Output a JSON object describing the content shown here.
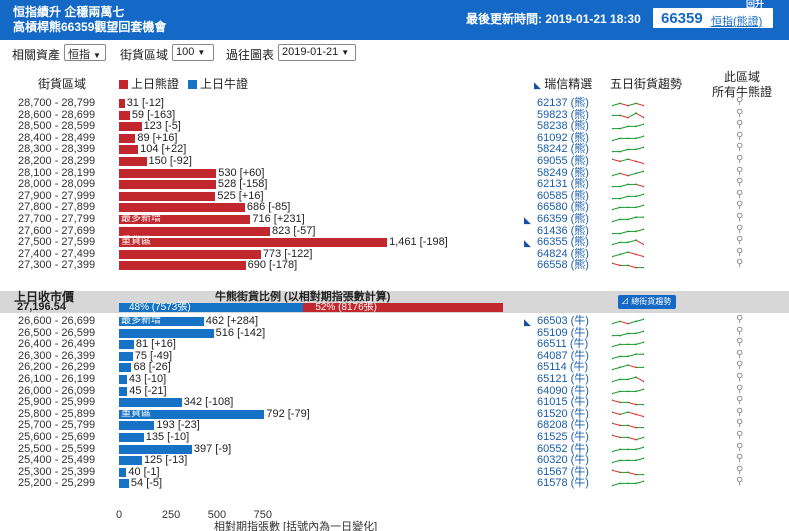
{
  "header": {
    "title_line1": "恒指績升 企穩兩萬七",
    "title_line2": "高槓桿熊66359觀望回套機會",
    "updated_label": "最後更新時間: 2019-01-21 18:30",
    "code": "66359",
    "code_name": "恒指(熊證)",
    "corner_text": "回升"
  },
  "filters": {
    "asset_label": "相關資產",
    "asset_value": "恒指",
    "zone_label": "街貨區域",
    "zone_value": "100",
    "chart_label": "過往圖表",
    "chart_value": "2019-01-21"
  },
  "columns": {
    "zone": "街貨區域",
    "legend_bear": "上日熊證",
    "legend_bull": "上日牛證",
    "picks": "瑞信精選",
    "trend": "五日街貨趨勢",
    "all_line1": "此區域",
    "all_line2": "所有牛熊證"
  },
  "colors": {
    "bear": "#c1272d",
    "bull": "#1572c4",
    "header": "#1469c7",
    "up": "#1a9a2a",
    "down": "#e03030"
  },
  "icons": {
    "search": "magnifier-icon",
    "highlight": "arrow-icon"
  },
  "bear_rows": [
    {
      "range": "28,700 - 28,799",
      "value": 31,
      "label": "31 [-12]",
      "code": "62137 (熊)",
      "trend": [
        2,
        3,
        2,
        3,
        2
      ],
      "tag": "",
      "hl": false
    },
    {
      "range": "28,600 - 28,699",
      "value": 59,
      "label": "59 [-163]",
      "code": "59823 (熊)",
      "trend": [
        3,
        3,
        2,
        4,
        2
      ],
      "tag": "",
      "hl": false
    },
    {
      "range": "28,500 - 28,599",
      "value": 123,
      "label": "123 [-5]",
      "code": "58238 (熊)",
      "trend": [
        2,
        2,
        3,
        3,
        4
      ],
      "tag": "",
      "hl": false
    },
    {
      "range": "28,400 - 28,499",
      "value": 89,
      "label": "89 [+16]",
      "code": "61092 (熊)",
      "trend": [
        2,
        3,
        3,
        3,
        4
      ],
      "tag": "",
      "hl": false
    },
    {
      "range": "28,300 - 28,399",
      "value": 104,
      "label": "104 [+22]",
      "code": "58242 (熊)",
      "trend": [
        2,
        2,
        3,
        3,
        4
      ],
      "tag": "",
      "hl": false
    },
    {
      "range": "28,200 - 28,299",
      "value": 150,
      "label": "150 [-92]",
      "code": "69055 (熊)",
      "trend": [
        4,
        3,
        4,
        3,
        2
      ],
      "tag": "",
      "hl": false
    },
    {
      "range": "28,100 - 28,199",
      "value": 530,
      "label": "530 [+60]",
      "code": "58249 (熊)",
      "trend": [
        2,
        3,
        2,
        3,
        4
      ],
      "tag": "",
      "hl": false
    },
    {
      "range": "28,000 - 28,099",
      "value": 528,
      "label": "528 [-158]",
      "code": "62131 (熊)",
      "trend": [
        2,
        2,
        3,
        3,
        2
      ],
      "tag": "",
      "hl": false
    },
    {
      "range": "27,900 - 27,999",
      "value": 525,
      "label": "525 [+16]",
      "code": "60585 (熊)",
      "trend": [
        2,
        2,
        3,
        3,
        4
      ],
      "tag": "",
      "hl": false
    },
    {
      "range": "27,800 - 27,899",
      "value": 686,
      "label": "686 [-85]",
      "code": "66580 (熊)",
      "trend": [
        2,
        3,
        3,
        3,
        4
      ],
      "tag": "",
      "hl": false
    },
    {
      "range": "27,700 - 27,799",
      "value": 716,
      "label": "716 [+231]",
      "code": "66359 (熊)",
      "trend": [
        2,
        3,
        3,
        4,
        4
      ],
      "tag": "最多新增",
      "hl": true
    },
    {
      "range": "27,600 - 27,699",
      "value": 823,
      "label": "823 [-57]",
      "code": "61436 (熊)",
      "trend": [
        2,
        2,
        3,
        3,
        4
      ],
      "tag": "",
      "hl": false
    },
    {
      "range": "27,500 - 27,599",
      "value": 1461,
      "label": "1,461 [-198]",
      "code": "66355 (熊)",
      "trend": [
        2,
        3,
        3,
        4,
        2
      ],
      "tag": "重貨區",
      "hl": true
    },
    {
      "range": "27,400 - 27,499",
      "value": 773,
      "label": "773 [-122]",
      "code": "64824 (熊)",
      "trend": [
        2,
        3,
        4,
        3,
        2
      ],
      "tag": "",
      "hl": false
    },
    {
      "range": "27,300 - 27,399",
      "value": 690,
      "label": "690 [-178]",
      "code": "66558 (熊)",
      "trend": [
        4,
        3,
        3,
        2,
        2
      ],
      "tag": "",
      "hl": false
    }
  ],
  "middle": {
    "close_label": "上日收市價",
    "close_value": "27,196.54",
    "ratio_title": "牛熊街貨比例 (以相對期指張數計算)",
    "bull_pct": 48,
    "bull_text": "48% (7573張)",
    "bear_pct": 52,
    "bear_text": "52% (8176張)",
    "trend_button": "總街貨趨勢"
  },
  "bull_rows": [
    {
      "range": "26,600 - 26,699",
      "value": 462,
      "label": "462 [+284]",
      "code": "66503 (牛)",
      "trend": [
        2,
        3,
        2,
        3,
        4
      ],
      "tag": "最多新增",
      "hl": true
    },
    {
      "range": "26,500 - 26,599",
      "value": 516,
      "label": "516 [-142]",
      "code": "65109 (牛)",
      "trend": [
        2,
        2,
        3,
        3,
        4
      ],
      "tag": "",
      "hl": false
    },
    {
      "range": "26,400 - 26,499",
      "value": 81,
      "label": "81 [+16]",
      "code": "66511 (牛)",
      "trend": [
        2,
        3,
        3,
        3,
        4
      ],
      "tag": "",
      "hl": false
    },
    {
      "range": "26,300 - 26,399",
      "value": 75,
      "label": "75 [-49]",
      "code": "64087 (牛)",
      "trend": [
        2,
        3,
        3,
        4,
        4
      ],
      "tag": "",
      "hl": false
    },
    {
      "range": "26,200 - 26,299",
      "value": 68,
      "label": "68 [-26]",
      "code": "65114 (牛)",
      "trend": [
        2,
        3,
        4,
        3,
        3
      ],
      "tag": "",
      "hl": false
    },
    {
      "range": "26,100 - 26,199",
      "value": 43,
      "label": "43 [-10]",
      "code": "65121 (牛)",
      "trend": [
        2,
        3,
        3,
        4,
        2
      ],
      "tag": "",
      "hl": false
    },
    {
      "range": "26,000 - 26,099",
      "value": 45,
      "label": "45 [-21]",
      "code": "64090 (牛)",
      "trend": [
        2,
        3,
        3,
        3,
        4
      ],
      "tag": "",
      "hl": false
    },
    {
      "range": "25,900 - 25,999",
      "value": 342,
      "label": "342 [-108]",
      "code": "61015 (牛)",
      "trend": [
        4,
        3,
        3,
        2,
        2
      ],
      "tag": "",
      "hl": false
    },
    {
      "range": "25,800 - 25,899",
      "value": 792,
      "label": "792 [-79]",
      "code": "61520 (牛)",
      "trend": [
        4,
        3,
        4,
        3,
        2
      ],
      "tag": "重貨區",
      "hl": false
    },
    {
      "range": "25,700 - 25,799",
      "value": 193,
      "label": "193 [-23]",
      "code": "68208 (牛)",
      "trend": [
        4,
        3,
        3,
        2,
        2
      ],
      "tag": "",
      "hl": false
    },
    {
      "range": "25,600 - 25,699",
      "value": 135,
      "label": "135 [-10]",
      "code": "61525 (牛)",
      "trend": [
        4,
        3,
        3,
        2,
        3
      ],
      "tag": "",
      "hl": false
    },
    {
      "range": "25,500 - 25,599",
      "value": 397,
      "label": "397 [-9]",
      "code": "60552 (牛)",
      "trend": [
        2,
        3,
        3,
        3,
        4
      ],
      "tag": "",
      "hl": false
    },
    {
      "range": "25,400 - 25,499",
      "value": 125,
      "label": "125 [-13]",
      "code": "60320 (牛)",
      "trend": [
        2,
        3,
        3,
        3,
        4
      ],
      "tag": "",
      "hl": false
    },
    {
      "range": "25,300 - 25,399",
      "value": 40,
      "label": "40 [-1]",
      "code": "61567 (牛)",
      "trend": [
        4,
        3,
        3,
        2,
        2
      ],
      "tag": "",
      "hl": false
    },
    {
      "range": "25,200 - 25,299",
      "value": 54,
      "label": "54 [-5]",
      "code": "61578 (牛)",
      "trend": [
        2,
        3,
        3,
        3,
        4
      ],
      "tag": "",
      "hl": false
    }
  ],
  "axis": {
    "ticks": [
      "0",
      "250",
      "500",
      "750"
    ],
    "tick_values": [
      0,
      250,
      500,
      750
    ],
    "xlabel": "相對期指張數 [括號內為一日變化]"
  }
}
